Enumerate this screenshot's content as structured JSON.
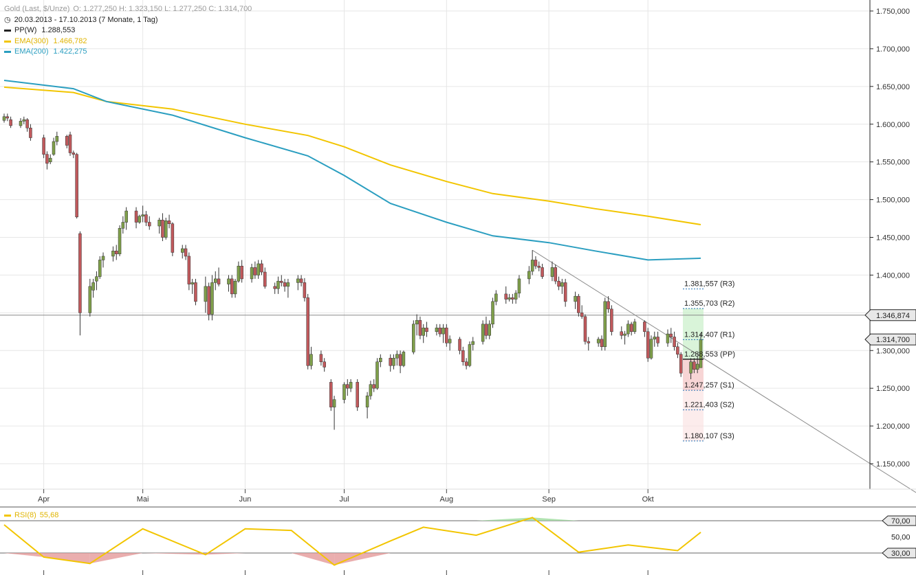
{
  "header": {
    "instrument": "Gold (Last, $/Unze)",
    "ohlc": "O: 1.277,250   H: 1.323,150   L: 1.277,250   C: 1.314,700",
    "period": "20.03.2013 - 17.10.2013 (7 Monate, 1 Tag)"
  },
  "indicators": [
    {
      "label": "PP(W)",
      "value": "1.288,553",
      "color": "#222222"
    },
    {
      "label": "EMA(300)",
      "value": "1.466,782",
      "color": "#f2c500"
    },
    {
      "label": "EMA(200)",
      "value": "1.422,275",
      "color": "#2a9ec0"
    }
  ],
  "rsi": {
    "label": "RSI(8)",
    "value": "55,68",
    "color": "#f2c500",
    "levels": [
      "70,00",
      "50,00",
      "30,00"
    ]
  },
  "price_axis": {
    "ticks": [
      "1.750,000",
      "1.700,000",
      "1.650,000",
      "1.600,000",
      "1.550,000",
      "1.500,000",
      "1.450,000",
      "1.400,000",
      "1.350,000",
      "1.300,000",
      "1.250,000",
      "1.200,000",
      "1.150,000"
    ],
    "marker_high": "1.346,874",
    "marker_last": "1.314,700"
  },
  "months": [
    "Apr",
    "Mai",
    "Jun",
    "Jul",
    "Aug",
    "Sep",
    "Okt"
  ],
  "pivots": [
    {
      "label": "1.381,557 (R3)",
      "value": 1381.557
    },
    {
      "label": "1.355,703 (R2)",
      "value": 1355.703
    },
    {
      "label": "1.314,407 (R1)",
      "value": 1314.407
    },
    {
      "label": "1.288,553 (PP)",
      "value": 1288.553
    },
    {
      "label": "1.247,257 (S1)",
      "value": 1247.257
    },
    {
      "label": "1.221,403 (S2)",
      "value": 1221.403
    },
    {
      "label": "1.180,107 (S3)",
      "value": 1180.107
    }
  ],
  "colors": {
    "up": "#7f9f4a",
    "down": "#c0595c",
    "grid": "#e6e6e6",
    "axis": "#222222"
  },
  "chart_data": {
    "type": "line",
    "title": "Gold (Last, $/Unze)",
    "xlabel": "",
    "ylabel": "",
    "ylim": [
      1100,
      1760
    ],
    "x_range": [
      "2013-03-20",
      "2013-10-17"
    ],
    "horizontal_line": 1346.874,
    "trendline": [
      {
        "date": "2013-08-27",
        "value": 1433
      },
      {
        "date": "2013-10-17",
        "value": 1292
      }
    ],
    "series": [
      {
        "name": "EMA(300)",
        "points": [
          [
            "2013-03-20",
            1649
          ],
          [
            "2013-04-10",
            1642
          ],
          [
            "2013-04-20",
            1630
          ],
          [
            "2013-05-10",
            1620
          ],
          [
            "2013-06-01",
            1600
          ],
          [
            "2013-06-20",
            1585
          ],
          [
            "2013-07-01",
            1570
          ],
          [
            "2013-07-15",
            1546
          ],
          [
            "2013-08-01",
            1524
          ],
          [
            "2013-08-15",
            1508
          ],
          [
            "2013-09-01",
            1498
          ],
          [
            "2013-09-15",
            1488
          ],
          [
            "2013-10-01",
            1478
          ],
          [
            "2013-10-17",
            1466.8
          ]
        ]
      },
      {
        "name": "EMA(200)",
        "points": [
          [
            "2013-03-20",
            1658
          ],
          [
            "2013-04-10",
            1647
          ],
          [
            "2013-04-20",
            1630
          ],
          [
            "2013-05-10",
            1612
          ],
          [
            "2013-06-01",
            1582
          ],
          [
            "2013-06-20",
            1558
          ],
          [
            "2013-07-01",
            1532
          ],
          [
            "2013-07-15",
            1495
          ],
          [
            "2013-08-01",
            1470
          ],
          [
            "2013-08-15",
            1452
          ],
          [
            "2013-09-01",
            1443
          ],
          [
            "2013-09-15",
            1432
          ],
          [
            "2013-10-01",
            1420
          ],
          [
            "2013-10-17",
            1422.3
          ]
        ]
      },
      {
        "name": "RSI(8)",
        "points": [
          [
            "2013-03-20",
            65
          ],
          [
            "2013-04-01",
            25
          ],
          [
            "2013-04-15",
            17
          ],
          [
            "2013-05-01",
            60
          ],
          [
            "2013-05-20",
            28
          ],
          [
            "2013-06-01",
            60
          ],
          [
            "2013-06-15",
            58
          ],
          [
            "2013-06-28",
            15
          ],
          [
            "2013-07-15",
            45
          ],
          [
            "2013-07-25",
            62
          ],
          [
            "2013-08-10",
            52
          ],
          [
            "2013-08-27",
            74
          ],
          [
            "2013-09-10",
            31
          ],
          [
            "2013-09-25",
            40
          ],
          [
            "2013-10-10",
            33
          ],
          [
            "2013-10-17",
            55.68
          ]
        ]
      }
    ],
    "ohlc": [
      [
        "2013-03-20",
        1605,
        1614,
        1602,
        1610
      ],
      [
        "2013-03-21",
        1610,
        1614,
        1604,
        1608
      ],
      [
        "2013-03-22",
        1606,
        1610,
        1595,
        1598
      ],
      [
        "2013-03-25",
        1598,
        1608,
        1595,
        1604
      ],
      [
        "2013-03-26",
        1604,
        1610,
        1600,
        1606
      ],
      [
        "2013-03-27",
        1606,
        1608,
        1590,
        1595
      ],
      [
        "2013-03-28",
        1595,
        1600,
        1578,
        1582
      ],
      [
        "2013-04-01",
        1582,
        1586,
        1555,
        1560
      ],
      [
        "2013-04-02",
        1560,
        1564,
        1540,
        1548
      ],
      [
        "2013-04-03",
        1550,
        1560,
        1547,
        1555
      ],
      [
        "2013-04-04",
        1560,
        1582,
        1558,
        1577
      ],
      [
        "2013-04-05",
        1577,
        1590,
        1572,
        1584
      ],
      [
        "2013-04-08",
        1584,
        1586,
        1568,
        1572
      ],
      [
        "2013-04-09",
        1586,
        1590,
        1558,
        1562
      ],
      [
        "2013-04-10",
        1562,
        1565,
        1555,
        1560
      ],
      [
        "2013-04-11",
        1560,
        1562,
        1475,
        1477
      ],
      [
        "2013-04-12",
        1455,
        1458,
        1320,
        1350
      ],
      [
        "2013-04-15",
        1350,
        1395,
        1345,
        1385
      ],
      [
        "2013-04-16",
        1380,
        1395,
        1370,
        1390
      ],
      [
        "2013-04-17",
        1392,
        1405,
        1380,
        1398
      ],
      [
        "2013-04-18",
        1398,
        1425,
        1395,
        1420
      ],
      [
        "2013-04-19",
        1420,
        1430,
        1410,
        1425
      ],
      [
        "2013-04-22",
        1425,
        1438,
        1418,
        1432
      ],
      [
        "2013-04-23",
        1432,
        1440,
        1420,
        1428
      ],
      [
        "2013-04-24",
        1428,
        1466,
        1425,
        1462
      ],
      [
        "2013-04-25",
        1462,
        1478,
        1455,
        1470
      ],
      [
        "2013-04-26",
        1470,
        1490,
        1460,
        1485
      ],
      [
        "2013-04-29",
        1485,
        1490,
        1462,
        1470
      ],
      [
        "2013-04-30",
        1470,
        1480,
        1468,
        1478
      ],
      [
        "2013-05-01",
        1478,
        1492,
        1470,
        1480
      ],
      [
        "2013-05-02",
        1480,
        1485,
        1465,
        1470
      ],
      [
        "2013-05-03",
        1470,
        1478,
        1460,
        1465
      ],
      [
        "2013-05-06",
        1465,
        1476,
        1455,
        1473
      ],
      [
        "2013-05-07",
        1473,
        1482,
        1445,
        1450
      ],
      [
        "2013-05-08",
        1450,
        1476,
        1447,
        1472
      ],
      [
        "2013-05-09",
        1472,
        1480,
        1462,
        1468
      ],
      [
        "2013-05-10",
        1468,
        1470,
        1425,
        1430
      ],
      [
        "2013-05-13",
        1430,
        1440,
        1422,
        1435
      ],
      [
        "2013-05-14",
        1435,
        1440,
        1420,
        1425
      ],
      [
        "2013-05-15",
        1425,
        1430,
        1380,
        1388
      ],
      [
        "2013-05-16",
        1388,
        1395,
        1375,
        1390
      ],
      [
        "2013-05-17",
        1390,
        1395,
        1360,
        1365
      ],
      [
        "2013-05-20",
        1365,
        1398,
        1350,
        1385
      ],
      [
        "2013-05-21",
        1385,
        1390,
        1340,
        1348
      ],
      [
        "2013-05-22",
        1348,
        1400,
        1340,
        1390
      ],
      [
        "2013-05-23",
        1390,
        1405,
        1380,
        1395
      ],
      [
        "2013-05-24",
        1395,
        1410,
        1385,
        1388
      ],
      [
        "2013-05-27",
        1388,
        1400,
        1378,
        1395
      ],
      [
        "2013-05-28",
        1395,
        1400,
        1370,
        1375
      ],
      [
        "2013-05-29",
        1375,
        1395,
        1370,
        1392
      ],
      [
        "2013-05-30",
        1392,
        1418,
        1390,
        1412
      ],
      [
        "2013-05-31",
        1412,
        1420,
        1390,
        1395
      ],
      [
        "2013-06-03",
        1395,
        1415,
        1390,
        1410
      ],
      [
        "2013-06-04",
        1410,
        1418,
        1395,
        1400
      ],
      [
        "2013-06-05",
        1400,
        1420,
        1395,
        1415
      ],
      [
        "2013-06-06",
        1415,
        1420,
        1400,
        1404
      ],
      [
        "2013-06-07",
        1404,
        1410,
        1382,
        1385
      ],
      [
        "2013-06-10",
        1385,
        1390,
        1375,
        1382
      ],
      [
        "2013-06-11",
        1382,
        1398,
        1375,
        1392
      ],
      [
        "2013-06-12",
        1392,
        1400,
        1385,
        1390
      ],
      [
        "2013-06-13",
        1390,
        1395,
        1378,
        1385
      ],
      [
        "2013-06-14",
        1385,
        1395,
        1370,
        1390
      ],
      [
        "2013-06-17",
        1390,
        1400,
        1380,
        1395
      ],
      [
        "2013-06-18",
        1395,
        1400,
        1385,
        1390
      ],
      [
        "2013-06-19",
        1390,
        1396,
        1365,
        1370
      ],
      [
        "2013-06-20",
        1370,
        1375,
        1275,
        1280
      ],
      [
        "2013-06-21",
        1280,
        1305,
        1275,
        1295
      ],
      [
        "2013-06-24",
        1295,
        1300,
        1280,
        1285
      ],
      [
        "2013-06-25",
        1285,
        1290,
        1272,
        1278
      ],
      [
        "2013-06-27",
        1258,
        1262,
        1220,
        1225
      ],
      [
        "2013-06-28",
        1225,
        1240,
        1195,
        1235
      ],
      [
        "2013-07-01",
        1235,
        1258,
        1230,
        1255
      ],
      [
        "2013-07-02",
        1255,
        1262,
        1240,
        1250
      ],
      [
        "2013-07-03",
        1250,
        1262,
        1245,
        1258
      ],
      [
        "2013-07-05",
        1258,
        1262,
        1220,
        1225
      ],
      [
        "2013-07-08",
        1225,
        1245,
        1210,
        1240
      ],
      [
        "2013-07-09",
        1240,
        1260,
        1235,
        1255
      ],
      [
        "2013-07-10",
        1255,
        1262,
        1245,
        1250
      ],
      [
        "2013-07-11",
        1250,
        1290,
        1248,
        1285
      ],
      [
        "2013-07-12",
        1285,
        1295,
        1278,
        1290
      ],
      [
        "2013-07-15",
        1290,
        1295,
        1272,
        1280
      ],
      [
        "2013-07-16",
        1280,
        1295,
        1275,
        1290
      ],
      [
        "2013-07-17",
        1290,
        1300,
        1280,
        1295
      ],
      [
        "2013-07-18",
        1295,
        1300,
        1270,
        1280
      ],
      [
        "2013-07-19",
        1280,
        1300,
        1278,
        1298
      ],
      [
        "2013-07-22",
        1298,
        1340,
        1295,
        1335
      ],
      [
        "2013-07-23",
        1335,
        1348,
        1320,
        1340
      ],
      [
        "2013-07-24",
        1340,
        1345,
        1315,
        1320
      ],
      [
        "2013-07-25",
        1320,
        1335,
        1310,
        1330
      ],
      [
        "2013-07-26",
        1330,
        1338,
        1318,
        1325
      ],
      [
        "2013-07-29",
        1325,
        1335,
        1320,
        1330
      ],
      [
        "2013-07-30",
        1330,
        1335,
        1318,
        1322
      ],
      [
        "2013-07-31",
        1322,
        1335,
        1310,
        1330
      ],
      [
        "2013-08-01",
        1330,
        1335,
        1305,
        1310
      ],
      [
        "2013-08-02",
        1310,
        1320,
        1300,
        1315
      ],
      [
        "2013-08-05",
        1315,
        1318,
        1295,
        1300
      ],
      [
        "2013-08-06",
        1300,
        1305,
        1280,
        1285
      ],
      [
        "2013-08-07",
        1285,
        1290,
        1275,
        1280
      ],
      [
        "2013-08-08",
        1280,
        1312,
        1278,
        1308
      ],
      [
        "2013-08-09",
        1308,
        1318,
        1300,
        1312
      ],
      [
        "2013-08-12",
        1312,
        1340,
        1308,
        1335
      ],
      [
        "2013-08-13",
        1335,
        1345,
        1315,
        1320
      ],
      [
        "2013-08-14",
        1320,
        1340,
        1315,
        1335
      ],
      [
        "2013-08-15",
        1335,
        1370,
        1330,
        1365
      ],
      [
        "2013-08-16",
        1365,
        1380,
        1360,
        1375
      ],
      [
        "2013-08-19",
        1375,
        1385,
        1362,
        1368
      ],
      [
        "2013-08-20",
        1368,
        1375,
        1365,
        1370
      ],
      [
        "2013-08-21",
        1370,
        1375,
        1362,
        1368
      ],
      [
        "2013-08-22",
        1368,
        1380,
        1362,
        1376
      ],
      [
        "2013-08-23",
        1376,
        1400,
        1370,
        1395
      ],
      [
        "2013-08-26",
        1395,
        1412,
        1388,
        1405
      ],
      [
        "2013-08-27",
        1405,
        1433,
        1400,
        1420
      ],
      [
        "2013-08-28",
        1420,
        1425,
        1408,
        1412
      ],
      [
        "2013-08-29",
        1412,
        1418,
        1405,
        1410
      ],
      [
        "2013-08-30",
        1410,
        1415,
        1395,
        1398
      ],
      [
        "2013-09-02",
        1398,
        1418,
        1392,
        1410
      ],
      [
        "2013-09-03",
        1410,
        1414,
        1388,
        1392
      ],
      [
        "2013-09-04",
        1392,
        1398,
        1380,
        1385
      ],
      [
        "2013-09-05",
        1385,
        1395,
        1375,
        1390
      ],
      [
        "2013-09-06",
        1390,
        1395,
        1358,
        1365
      ],
      [
        "2013-09-09",
        1365,
        1378,
        1355,
        1372
      ],
      [
        "2013-09-10",
        1372,
        1375,
        1345,
        1350
      ],
      [
        "2013-09-11",
        1350,
        1360,
        1342,
        1345
      ],
      [
        "2013-09-12",
        1345,
        1348,
        1308,
        1312
      ],
      [
        "2013-09-13",
        1312,
        1318,
        1300,
        1310
      ],
      [
        "2013-09-16",
        1310,
        1318,
        1305,
        1315
      ],
      [
        "2013-09-17",
        1315,
        1320,
        1300,
        1305
      ],
      [
        "2013-09-18",
        1305,
        1370,
        1300,
        1365
      ],
      [
        "2013-09-19",
        1365,
        1372,
        1350,
        1355
      ],
      [
        "2013-09-20",
        1355,
        1360,
        1320,
        1325
      ],
      [
        "2013-09-23",
        1325,
        1332,
        1315,
        1320
      ],
      [
        "2013-09-24",
        1320,
        1326,
        1308,
        1322
      ],
      [
        "2013-09-25",
        1322,
        1340,
        1318,
        1335
      ],
      [
        "2013-09-26",
        1335,
        1338,
        1320,
        1325
      ],
      [
        "2013-09-27",
        1325,
        1342,
        1322,
        1338
      ],
      [
        "2013-09-30",
        1338,
        1340,
        1318,
        1325
      ],
      [
        "2013-10-01",
        1325,
        1330,
        1285,
        1290
      ],
      [
        "2013-10-02",
        1290,
        1320,
        1288,
        1315
      ],
      [
        "2013-10-03",
        1315,
        1325,
        1305,
        1318
      ],
      [
        "2013-10-04",
        1318,
        1325,
        1305,
        1310
      ],
      [
        "2013-10-07",
        1310,
        1328,
        1305,
        1322
      ],
      [
        "2013-10-08",
        1322,
        1330,
        1310,
        1318
      ],
      [
        "2013-10-09",
        1318,
        1325,
        1300,
        1305
      ],
      [
        "2013-10-10",
        1305,
        1310,
        1290,
        1295
      ],
      [
        "2013-10-11",
        1295,
        1298,
        1265,
        1270
      ],
      [
        "2013-10-14",
        1270,
        1290,
        1262,
        1285
      ],
      [
        "2013-10-15",
        1285,
        1290,
        1270,
        1275
      ],
      [
        "2013-10-16",
        1275,
        1292,
        1270,
        1282
      ],
      [
        "2013-10-17",
        1277.25,
        1323.15,
        1277.25,
        1314.7
      ]
    ]
  }
}
